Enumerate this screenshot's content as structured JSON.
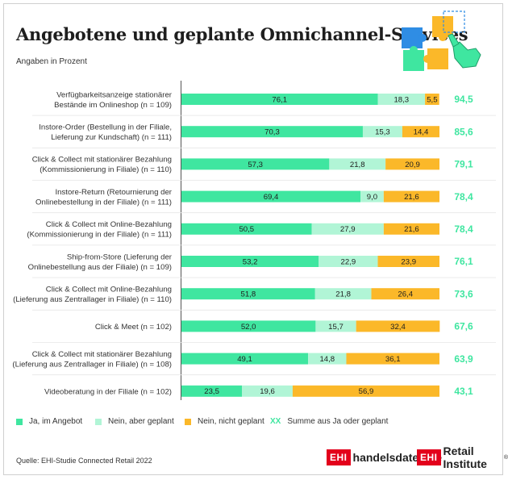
{
  "header": {
    "title": "Angebotene und geplante Omnichannel-Services",
    "subtitle": "Angaben in Prozent"
  },
  "colors": {
    "ja": "#3fe6a0",
    "nein_geplant": "#b1f5d6",
    "nein_nicht": "#fbb829",
    "sum_text": "#3fe6a0",
    "puzzle_blue": "#2f8de4",
    "puzzle_yellow": "#fbb829",
    "puzzle_green": "#3fe6a0",
    "ehi_red": "#e3001b"
  },
  "chart_data": {
    "type": "bar",
    "orientation": "horizontal",
    "stacked": true,
    "xlim": [
      0,
      100
    ],
    "categories": [
      [
        "Verfügbarkeitsanzeige stationärer",
        "Bestände im Onlineshop (n = 109)"
      ],
      [
        "Instore-Order (Bestellung in der Filiale,",
        "Lieferung zur Kundschaft) (n = 111)"
      ],
      [
        "Click & Collect mit stationärer Bezahlung",
        "(Kommissionierung in Filiale) (n = 110)"
      ],
      [
        "Instore-Return (Retournierung der",
        "Onlinebestellung in der Filiale) (n = 111)"
      ],
      [
        "Click & Collect mit Online-Bezahlung",
        "(Kommissionierung in der Filiale) (n = 111)"
      ],
      [
        "Ship-from-Store (Lieferung der",
        "Onlinebestellung aus der Filiale) (n = 109)"
      ],
      [
        "Click & Collect mit Online-Bezahlung",
        "(Lieferung aus Zentrallager in Filiale) (n = 110)"
      ],
      [
        "Click & Meet (n = 102)"
      ],
      [
        "Click & Collect mit stationärer Bezahlung",
        "(Lieferung aus Zentrallager in Filiale) (n = 108)"
      ],
      [
        "Videoberatung in der Filiale (n = 102)"
      ]
    ],
    "series": [
      {
        "name": "Ja, im Angebot",
        "values": [
          76.1,
          70.3,
          57.3,
          69.4,
          50.5,
          53.2,
          51.8,
          52.0,
          49.1,
          23.5
        ]
      },
      {
        "name": "Nein, aber geplant",
        "values": [
          18.3,
          15.3,
          21.8,
          9.0,
          27.9,
          22.9,
          21.8,
          15.7,
          14.8,
          19.6
        ]
      },
      {
        "name": "Nein, nicht geplant",
        "values": [
          5.5,
          14.4,
          20.9,
          21.6,
          21.6,
          23.9,
          26.4,
          32.4,
          36.1,
          56.9
        ]
      }
    ],
    "sums": {
      "name": "Summe aus Ja oder geplant",
      "values": [
        94.5,
        85.6,
        79.1,
        78.4,
        78.4,
        76.1,
        73.6,
        67.6,
        63.9,
        43.1
      ]
    },
    "value_labels": [
      [
        "76,1",
        "18,3",
        "5,5"
      ],
      [
        "70,3",
        "15,3",
        "14,4"
      ],
      [
        "57,3",
        "21,8",
        "20,9"
      ],
      [
        "69,4",
        "9,0",
        "21,6"
      ],
      [
        "50,5",
        "27,9",
        "21,6"
      ],
      [
        "53,2",
        "22,9",
        "23,9"
      ],
      [
        "51,8",
        "21,8",
        "26,4"
      ],
      [
        "52,0",
        "15,7",
        "32,4"
      ],
      [
        "49,1",
        "14,8",
        "36,1"
      ],
      [
        "23,5",
        "19,6",
        "56,9"
      ]
    ],
    "sum_labels": [
      "94,5",
      "85,6",
      "79,1",
      "78,4",
      "78,4",
      "76,1",
      "73,6",
      "67,6",
      "63,9",
      "43,1"
    ],
    "legend_position": "bottom"
  },
  "legend": {
    "items": [
      "Ja, im Angebot",
      "Nein, aber geplant",
      "Nein, nicht geplant"
    ],
    "sum_marker": "XX",
    "sum_label": "Summe aus Ja oder geplant"
  },
  "footer": {
    "source": "Quelle: EHI-Studie Connected Retail 2022",
    "brand1_box": "EHI",
    "brand1_text": "handelsdaten.de",
    "brand2_box": "EHI",
    "brand2_text": "Retail Institute",
    "brand2_reg": "®"
  }
}
